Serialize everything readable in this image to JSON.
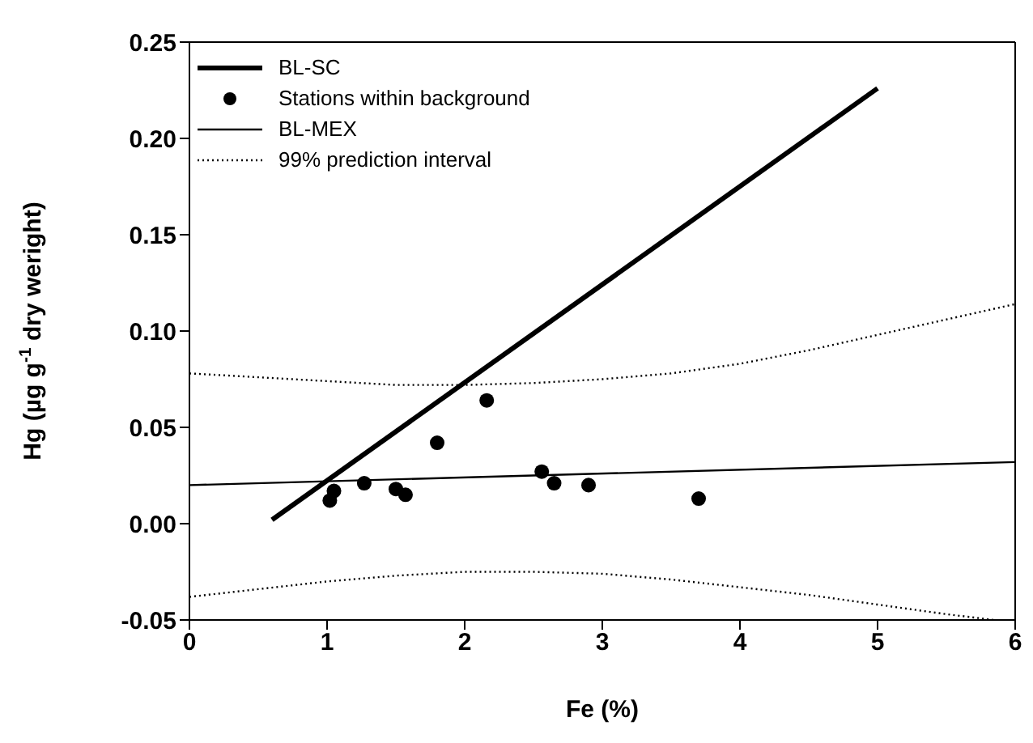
{
  "chart_data": {
    "type": "line",
    "xlabel": "Fe (%)",
    "ylabel": "Hg (µg g$^{-1}$ dry weright)",
    "xlim": [
      0,
      6
    ],
    "xticks": [
      0,
      1,
      2,
      3,
      4,
      5,
      6
    ],
    "ylim": [
      -0.05,
      0.25
    ],
    "yticks": [
      {
        "value": -0.05,
        "label": "-0.05"
      },
      {
        "value": 0,
        "label": "0.00"
      },
      {
        "value": 0.05,
        "label": "0.05"
      },
      {
        "value": 0.1,
        "label": "0.10"
      },
      {
        "value": 0.15,
        "label": "0.15"
      },
      {
        "value": 0.2,
        "label": "0.20"
      },
      {
        "value": 0.25,
        "label": "0.25"
      }
    ],
    "legend": "top left",
    "series": [
      {
        "name": "BL-SC",
        "color": "#000000",
        "line_style": "solid",
        "marker": "none",
        "x": [
          0.6,
          5
        ],
        "values": [
          0.002,
          0.226
        ]
      },
      {
        "name": "Stations within background",
        "type": "scatter",
        "color": "#000000",
        "marker": "circle",
        "x": [
          1.02,
          1.05,
          1.27,
          1.5,
          1.57,
          1.8,
          2.16,
          2.56,
          2.65,
          2.9,
          3.7
        ],
        "values": [
          0.012,
          0.017,
          0.021,
          0.018,
          0.015,
          0.042,
          0.064,
          0.027,
          0.021,
          0.02,
          0.013
        ]
      },
      {
        "name": "BL-MEX",
        "color": "#000000",
        "line_style": "solid",
        "marker": "none",
        "x": [
          0,
          6
        ],
        "values": [
          0.02,
          0.032
        ]
      },
      {
        "name": "99% prediction interval",
        "color": "#000000",
        "line_style": "dotted",
        "marker": "none",
        "x": [
          0,
          0.5,
          1,
          1.5,
          2,
          2.5,
          3,
          3.5,
          4,
          4.5,
          5,
          5.5,
          6
        ],
        "values": [
          0.078,
          0.076,
          0.074,
          0.072,
          0.072,
          0.073,
          0.075,
          0.078,
          0.083,
          0.09,
          0.098,
          0.106,
          0.114
        ]
      },
      {
        "color": "#000000",
        "line_style": "dotted",
        "marker": "none",
        "x": [
          0,
          0.5,
          1,
          1.5,
          2,
          2.5,
          3,
          3.5,
          4,
          4.5,
          5,
          5.5,
          5.85
        ],
        "values": [
          -0.038,
          -0.034,
          -0.03,
          -0.027,
          -0.025,
          -0.025,
          -0.026,
          -0.029,
          -0.033,
          -0.037,
          -0.042,
          -0.047,
          -0.05
        ]
      }
    ]
  }
}
